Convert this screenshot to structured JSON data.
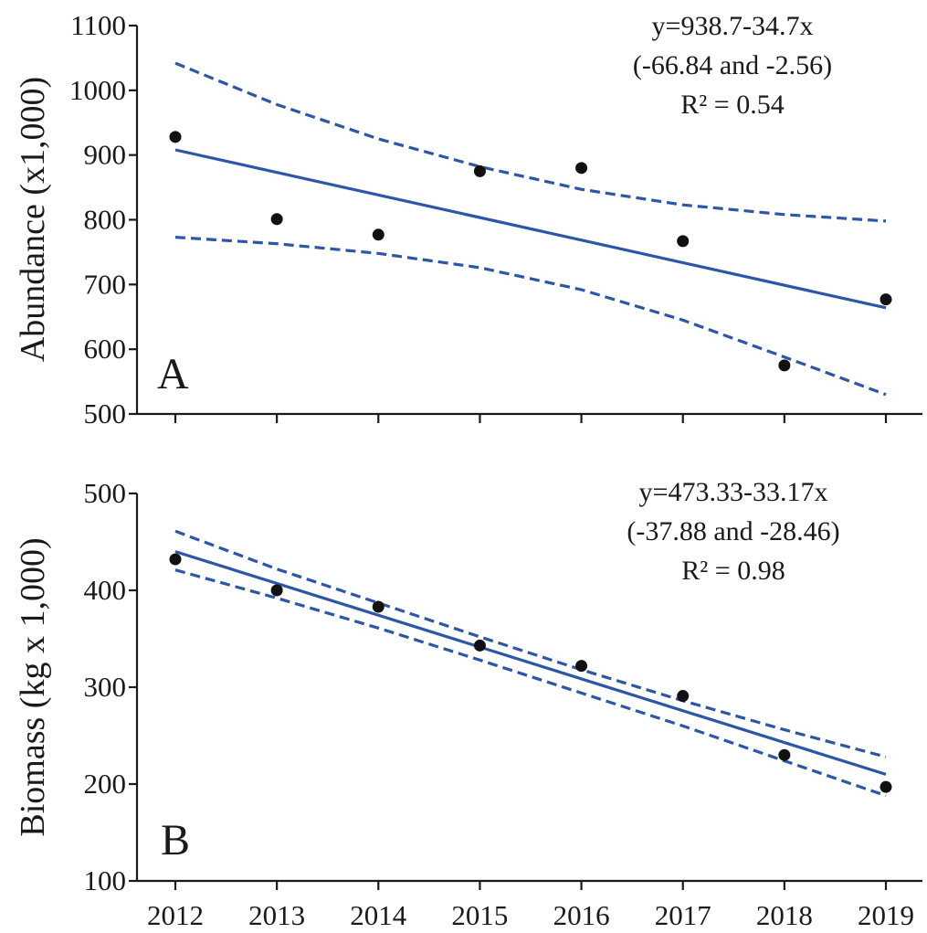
{
  "chart_data": [
    {
      "type": "scatter",
      "panel_label": "A",
      "ylabel": "Abundance (x1,000)",
      "ylim": [
        500,
        1100
      ],
      "yticks": [
        "500",
        "600",
        "700",
        "800",
        "900",
        "1000",
        "1100"
      ],
      "x": [
        2012,
        2013,
        2014,
        2015,
        2016,
        2017,
        2018,
        2019
      ],
      "y": [
        928,
        801,
        777,
        875,
        880,
        767,
        575,
        677
      ],
      "fit": {
        "start": [
          2012,
          908
        ],
        "end": [
          2019,
          664
        ]
      },
      "ci_upper": [
        [
          2012,
          1042
        ],
        [
          2013,
          978
        ],
        [
          2014,
          925
        ],
        [
          2015,
          882
        ],
        [
          2016,
          847
        ],
        [
          2017,
          823
        ],
        [
          2018,
          808
        ],
        [
          2019,
          798
        ]
      ],
      "ci_lower": [
        [
          2012,
          773
        ],
        [
          2013,
          763
        ],
        [
          2014,
          748
        ],
        [
          2015,
          726
        ],
        [
          2016,
          692
        ],
        [
          2017,
          645
        ],
        [
          2018,
          588
        ],
        [
          2019,
          530
        ]
      ],
      "annotation": [
        "y=938.7-34.7x",
        "(-66.84 and -2.56)",
        "R² = 0.54"
      ],
      "colors": {
        "points": "#111111",
        "fit": "#2d55a8",
        "ci": "#2d55a8"
      }
    },
    {
      "type": "scatter",
      "panel_label": "B",
      "ylabel": "Biomass (kg x 1,000)",
      "ylim": [
        100,
        500
      ],
      "yticks": [
        "100",
        "200",
        "300",
        "400",
        "500"
      ],
      "x": [
        2012,
        2013,
        2014,
        2015,
        2016,
        2017,
        2018,
        2019
      ],
      "xticks": [
        "2012",
        "2013",
        "2014",
        "2015",
        "2016",
        "2017",
        "2018",
        "2019"
      ],
      "y": [
        432,
        400,
        383,
        343,
        322,
        291,
        230,
        197
      ],
      "fit": {
        "start": [
          2012,
          440
        ],
        "end": [
          2019,
          210
        ]
      },
      "ci_upper": [
        [
          2012,
          461
        ],
        [
          2013,
          422
        ],
        [
          2014,
          387
        ],
        [
          2015,
          352
        ],
        [
          2016,
          318
        ],
        [
          2017,
          286
        ],
        [
          2018,
          256
        ],
        [
          2019,
          228
        ]
      ],
      "ci_lower": [
        [
          2012,
          421
        ],
        [
          2013,
          392
        ],
        [
          2014,
          361
        ],
        [
          2015,
          328
        ],
        [
          2016,
          294
        ],
        [
          2017,
          260
        ],
        [
          2018,
          224
        ],
        [
          2019,
          188
        ]
      ],
      "annotation": [
        "y=473.33-33.17x",
        "(-37.88 and -28.46)",
        "R² = 0.98"
      ],
      "colors": {
        "points": "#111111",
        "fit": "#2d55a8",
        "ci": "#2d55a8"
      }
    }
  ]
}
